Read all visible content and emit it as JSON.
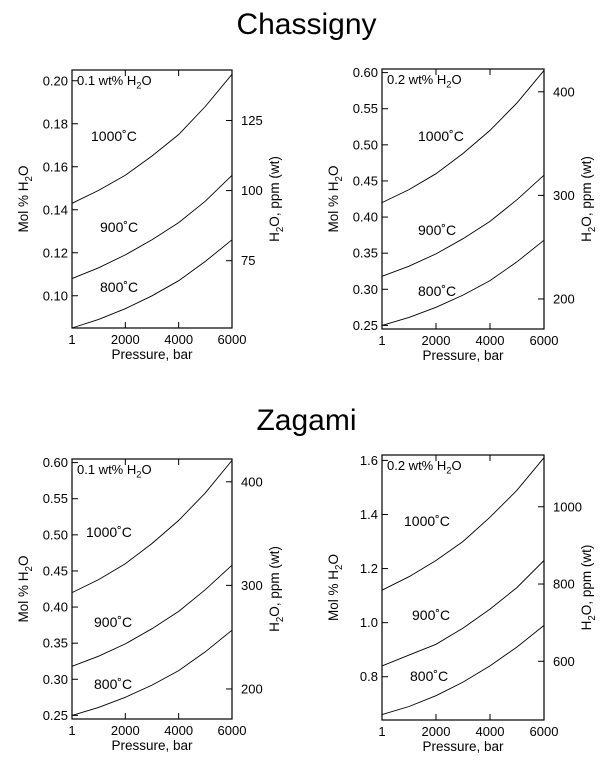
{
  "sections": [
    {
      "title": "Chassigny"
    },
    {
      "title": "Zagami"
    }
  ],
  "chart_data": [
    {
      "type": "line",
      "section": "Chassigny",
      "annotation": "0.1 wt% H2O",
      "xlabel": "Pressure, bar",
      "ylabel": "Mol % H2O",
      "y2label": "H2O, ppm (wt)",
      "xlim": [
        1,
        6000
      ],
      "ylim": [
        0.085,
        0.205
      ],
      "y2lim": [
        51,
        143
      ],
      "x_ticks": [
        1,
        2000,
        4000,
        6000
      ],
      "y_ticks": [
        0.1,
        0.12,
        0.14,
        0.16,
        0.18,
        0.2
      ],
      "y_tick_labels": [
        "0.10",
        "0.12",
        "0.14",
        "0.16",
        "0.18",
        "0.20"
      ],
      "y2_ticks": [
        75,
        100,
        125
      ],
      "x": [
        1,
        1000,
        2000,
        3000,
        4000,
        5000,
        6000
      ],
      "series": [
        {
          "name": "1000˚C",
          "values": [
            0.143,
            0.149,
            0.156,
            0.165,
            0.175,
            0.188,
            0.203
          ]
        },
        {
          "name": "900˚C",
          "values": [
            0.108,
            0.113,
            0.119,
            0.126,
            0.134,
            0.144,
            0.156
          ]
        },
        {
          "name": "800˚C",
          "values": [
            0.085,
            0.089,
            0.094,
            0.1,
            0.107,
            0.116,
            0.126
          ]
        }
      ]
    },
    {
      "type": "line",
      "section": "Chassigny",
      "annotation": "0.2 wt% H2O",
      "xlabel": "Pressure, bar",
      "ylabel": "Mol % H2O",
      "y2label": "H2O, ppm (wt)",
      "xlim": [
        1,
        6000
      ],
      "ylim": [
        0.245,
        0.605
      ],
      "y2lim": [
        171,
        422
      ],
      "x_ticks": [
        1,
        2000,
        4000,
        6000
      ],
      "y_ticks": [
        0.25,
        0.3,
        0.35,
        0.4,
        0.45,
        0.5,
        0.55,
        0.6
      ],
      "y_tick_labels": [
        "0.25",
        "0.30",
        "0.35",
        "0.40",
        "0.45",
        "0.50",
        "0.55",
        "0.60"
      ],
      "y2_ticks": [
        200,
        300,
        400
      ],
      "x": [
        1,
        1000,
        2000,
        3000,
        4000,
        5000,
        6000
      ],
      "series": [
        {
          "name": "1000˚C",
          "values": [
            0.42,
            0.438,
            0.46,
            0.488,
            0.52,
            0.558,
            0.603
          ]
        },
        {
          "name": "900˚C",
          "values": [
            0.318,
            0.332,
            0.349,
            0.37,
            0.394,
            0.424,
            0.458
          ]
        },
        {
          "name": "800˚C",
          "values": [
            0.25,
            0.261,
            0.275,
            0.292,
            0.312,
            0.338,
            0.368
          ]
        }
      ]
    },
    {
      "type": "line",
      "section": "Zagami",
      "annotation": "0.1 wt% H2O",
      "xlabel": "Pressure, bar",
      "ylabel": "Mol % H2O",
      "y2label": "H2O, ppm (wt)",
      "xlim": [
        1,
        6000
      ],
      "ylim": [
        0.245,
        0.605
      ],
      "y2lim": [
        171,
        422
      ],
      "x_ticks": [
        1,
        2000,
        4000,
        6000
      ],
      "y_ticks": [
        0.25,
        0.3,
        0.35,
        0.4,
        0.45,
        0.5,
        0.55,
        0.6
      ],
      "y_tick_labels": [
        "0.25",
        "0.30",
        "0.35",
        "0.40",
        "0.45",
        "0.50",
        "0.55",
        "0.60"
      ],
      "y2_ticks": [
        200,
        300,
        400
      ],
      "x": [
        1,
        1000,
        2000,
        3000,
        4000,
        5000,
        6000
      ],
      "series": [
        {
          "name": "1000˚C",
          "values": [
            0.42,
            0.438,
            0.46,
            0.488,
            0.52,
            0.558,
            0.603
          ]
        },
        {
          "name": "900˚C",
          "values": [
            0.318,
            0.332,
            0.349,
            0.37,
            0.394,
            0.424,
            0.458
          ]
        },
        {
          "name": "800˚C",
          "values": [
            0.25,
            0.261,
            0.275,
            0.292,
            0.312,
            0.338,
            0.368
          ]
        }
      ]
    },
    {
      "type": "line",
      "section": "Zagami",
      "annotation": "0.2 wt% H2O",
      "xlabel": "Pressure, bar",
      "ylabel": "Mol % H2O",
      "y2label": "H2O, ppm (wt)",
      "xlim": [
        1,
        6000
      ],
      "ylim": [
        0.64,
        1.62
      ],
      "y2lim": [
        448,
        1134
      ],
      "x_ticks": [
        1,
        2000,
        4000,
        6000
      ],
      "y_ticks": [
        0.8,
        1.0,
        1.2,
        1.4,
        1.6
      ],
      "y_tick_labels": [
        "0.8",
        "1.0",
        "1.2",
        "1.4",
        "1.6"
      ],
      "y2_ticks": [
        600,
        800,
        1000
      ],
      "x": [
        1,
        1000,
        2000,
        3000,
        4000,
        5000,
        6000
      ],
      "series": [
        {
          "name": "1000˚C",
          "values": [
            1.12,
            1.17,
            1.23,
            1.3,
            1.39,
            1.49,
            1.61
          ]
        },
        {
          "name": "900˚C",
          "values": [
            0.84,
            0.88,
            0.92,
            0.98,
            1.05,
            1.13,
            1.23
          ]
        },
        {
          "name": "800˚C",
          "values": [
            0.66,
            0.69,
            0.73,
            0.78,
            0.84,
            0.91,
            0.99
          ]
        }
      ]
    }
  ]
}
